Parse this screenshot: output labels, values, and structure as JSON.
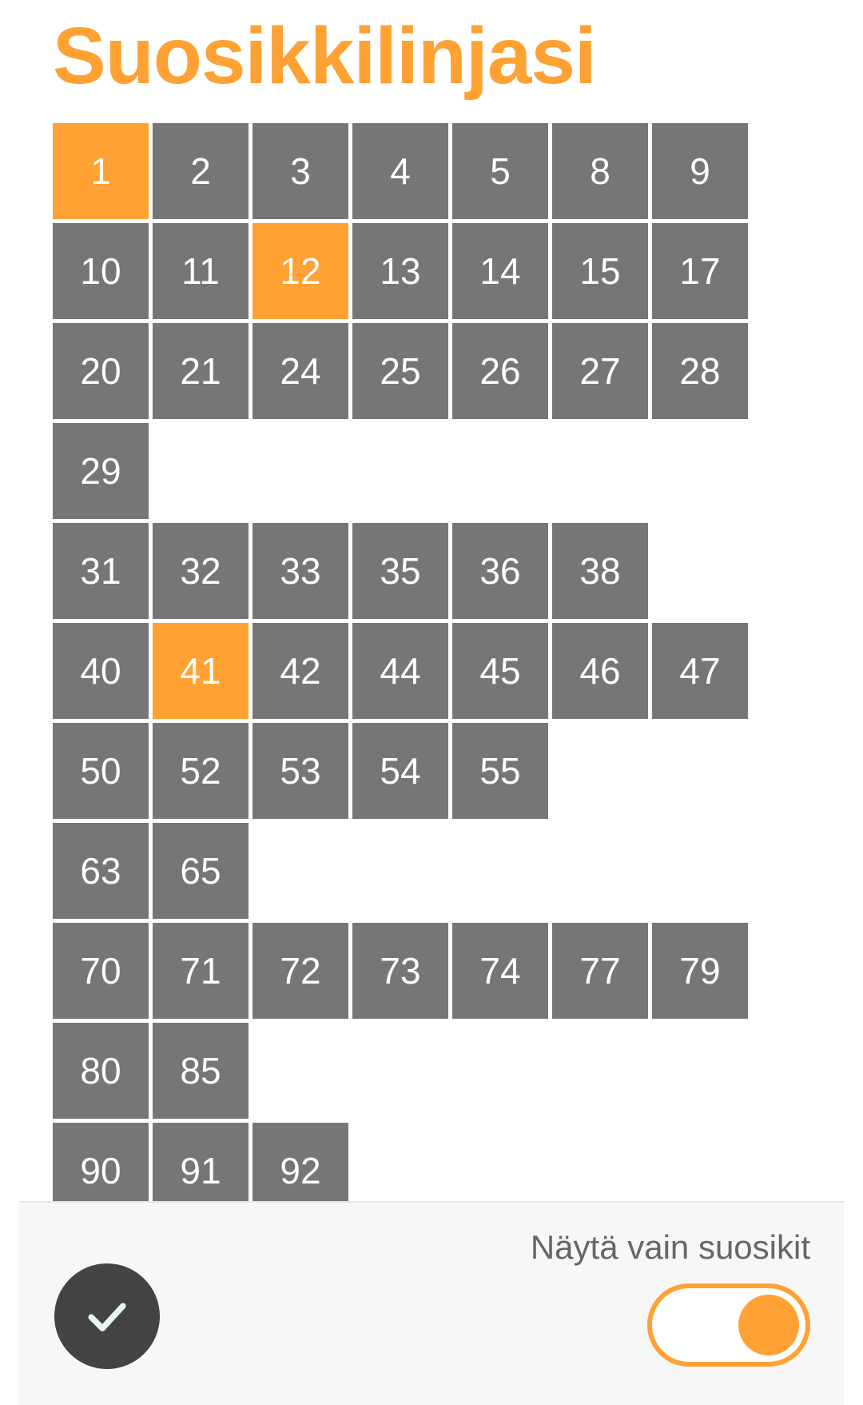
{
  "header": {
    "title": "Suosikkilinjasi"
  },
  "colors": {
    "accent": "#ffa133",
    "tile": "#767676",
    "tile_selected": "#ffa133",
    "tile_text": "#ffffff",
    "confirm_button": "#434343",
    "check_icon": "#e9f5ef"
  },
  "line_rows": [
    [
      {
        "label": "1",
        "favorite": true
      },
      {
        "label": "2",
        "favorite": false
      },
      {
        "label": "3",
        "favorite": false
      },
      {
        "label": "4",
        "favorite": false
      },
      {
        "label": "5",
        "favorite": false
      },
      {
        "label": "8",
        "favorite": false
      },
      {
        "label": "9",
        "favorite": false
      }
    ],
    [
      {
        "label": "10",
        "favorite": false
      },
      {
        "label": "11",
        "favorite": false
      },
      {
        "label": "12",
        "favorite": true
      },
      {
        "label": "13",
        "favorite": false
      },
      {
        "label": "14",
        "favorite": false
      },
      {
        "label": "15",
        "favorite": false
      },
      {
        "label": "17",
        "favorite": false
      }
    ],
    [
      {
        "label": "20",
        "favorite": false
      },
      {
        "label": "21",
        "favorite": false
      },
      {
        "label": "24",
        "favorite": false
      },
      {
        "label": "25",
        "favorite": false
      },
      {
        "label": "26",
        "favorite": false
      },
      {
        "label": "27",
        "favorite": false
      },
      {
        "label": "28",
        "favorite": false
      }
    ],
    [
      {
        "label": "29",
        "favorite": false
      }
    ],
    [
      {
        "label": "31",
        "favorite": false
      },
      {
        "label": "32",
        "favorite": false
      },
      {
        "label": "33",
        "favorite": false
      },
      {
        "label": "35",
        "favorite": false
      },
      {
        "label": "36",
        "favorite": false
      },
      {
        "label": "38",
        "favorite": false
      }
    ],
    [
      {
        "label": "40",
        "favorite": false
      },
      {
        "label": "41",
        "favorite": true
      },
      {
        "label": "42",
        "favorite": false
      },
      {
        "label": "44",
        "favorite": false
      },
      {
        "label": "45",
        "favorite": false
      },
      {
        "label": "46",
        "favorite": false
      },
      {
        "label": "47",
        "favorite": false
      }
    ],
    [
      {
        "label": "50",
        "favorite": false
      },
      {
        "label": "52",
        "favorite": false
      },
      {
        "label": "53",
        "favorite": false
      },
      {
        "label": "54",
        "favorite": false
      },
      {
        "label": "55",
        "favorite": false
      }
    ],
    [
      {
        "label": "63",
        "favorite": false
      },
      {
        "label": "65",
        "favorite": false
      }
    ],
    [
      {
        "label": "70",
        "favorite": false
      },
      {
        "label": "71",
        "favorite": false
      },
      {
        "label": "72",
        "favorite": false
      },
      {
        "label": "73",
        "favorite": false
      },
      {
        "label": "74",
        "favorite": false
      },
      {
        "label": "77",
        "favorite": false
      },
      {
        "label": "79",
        "favorite": false
      }
    ],
    [
      {
        "label": "80",
        "favorite": false
      },
      {
        "label": "85",
        "favorite": false
      }
    ],
    [
      {
        "label": "90",
        "favorite": false
      },
      {
        "label": "91",
        "favorite": false
      },
      {
        "label": "92",
        "favorite": false
      }
    ]
  ],
  "footer": {
    "confirm_icon": "check-icon",
    "toggle_label": "Näytä vain suosikit",
    "toggle_on": true
  }
}
